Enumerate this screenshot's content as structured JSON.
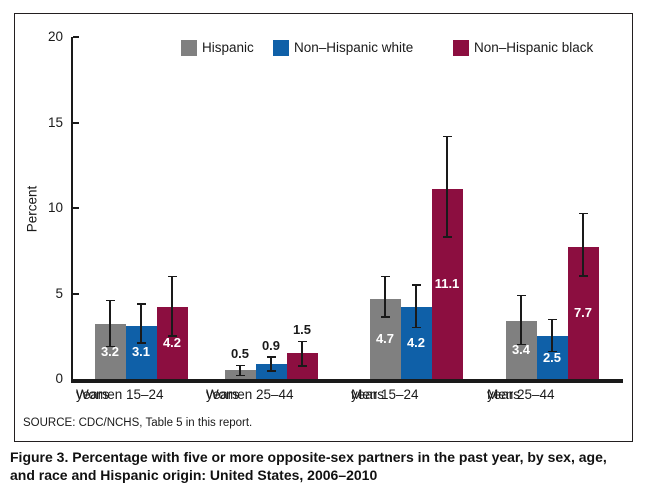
{
  "figure": {
    "source_note": "SOURCE: CDC/NCHS, Table 5 in this report.",
    "caption_line1": "Figure 3. Percentage with five or more opposite-sex partners in the past year, by sex, age,",
    "caption_line2": "and race and Hispanic origin: United States, 2006–2010"
  },
  "chart_data": {
    "type": "bar",
    "title": "",
    "xlabel": "",
    "ylabel": "Percent",
    "ylim": [
      0,
      20
    ],
    "yticks": [
      0,
      5,
      10,
      15,
      20
    ],
    "grid": false,
    "legend_position": "top-inside",
    "error_bars": true,
    "categories": [
      {
        "line1": "Women 15–24",
        "line2": "years"
      },
      {
        "line1": "Women 25–44",
        "line2": "years"
      },
      {
        "line1": "Men 15–24",
        "line2": "years"
      },
      {
        "line1": "Men 25–44",
        "line2": "years"
      }
    ],
    "value_label_placement": [
      "inside",
      "above",
      "inside",
      "inside"
    ],
    "series": [
      {
        "name": "Hispanic",
        "color": "#808080",
        "values": [
          3.2,
          0.5,
          4.7,
          3.4
        ],
        "err_low": [
          1.9,
          0.2,
          3.6,
          2.0
        ],
        "err_high": [
          4.6,
          0.8,
          6.0,
          4.9
        ]
      },
      {
        "name": "Non–Hispanic white",
        "color": "#0F60A8",
        "values": [
          3.1,
          0.9,
          4.2,
          2.5
        ],
        "err_low": [
          2.1,
          0.45,
          3.0,
          1.6
        ],
        "err_high": [
          4.4,
          1.3,
          5.5,
          3.5
        ]
      },
      {
        "name": "Non–Hispanic black",
        "color": "#8C0E40",
        "values": [
          4.2,
          1.5,
          11.1,
          7.7
        ],
        "err_low": [
          2.5,
          0.75,
          8.3,
          6.0
        ],
        "err_high": [
          6.0,
          2.2,
          14.2,
          9.7
        ]
      }
    ],
    "colors": {
      "text": "#1a1a1a",
      "inside_label": "#ffffff",
      "axis": "#1a1a1a"
    }
  }
}
